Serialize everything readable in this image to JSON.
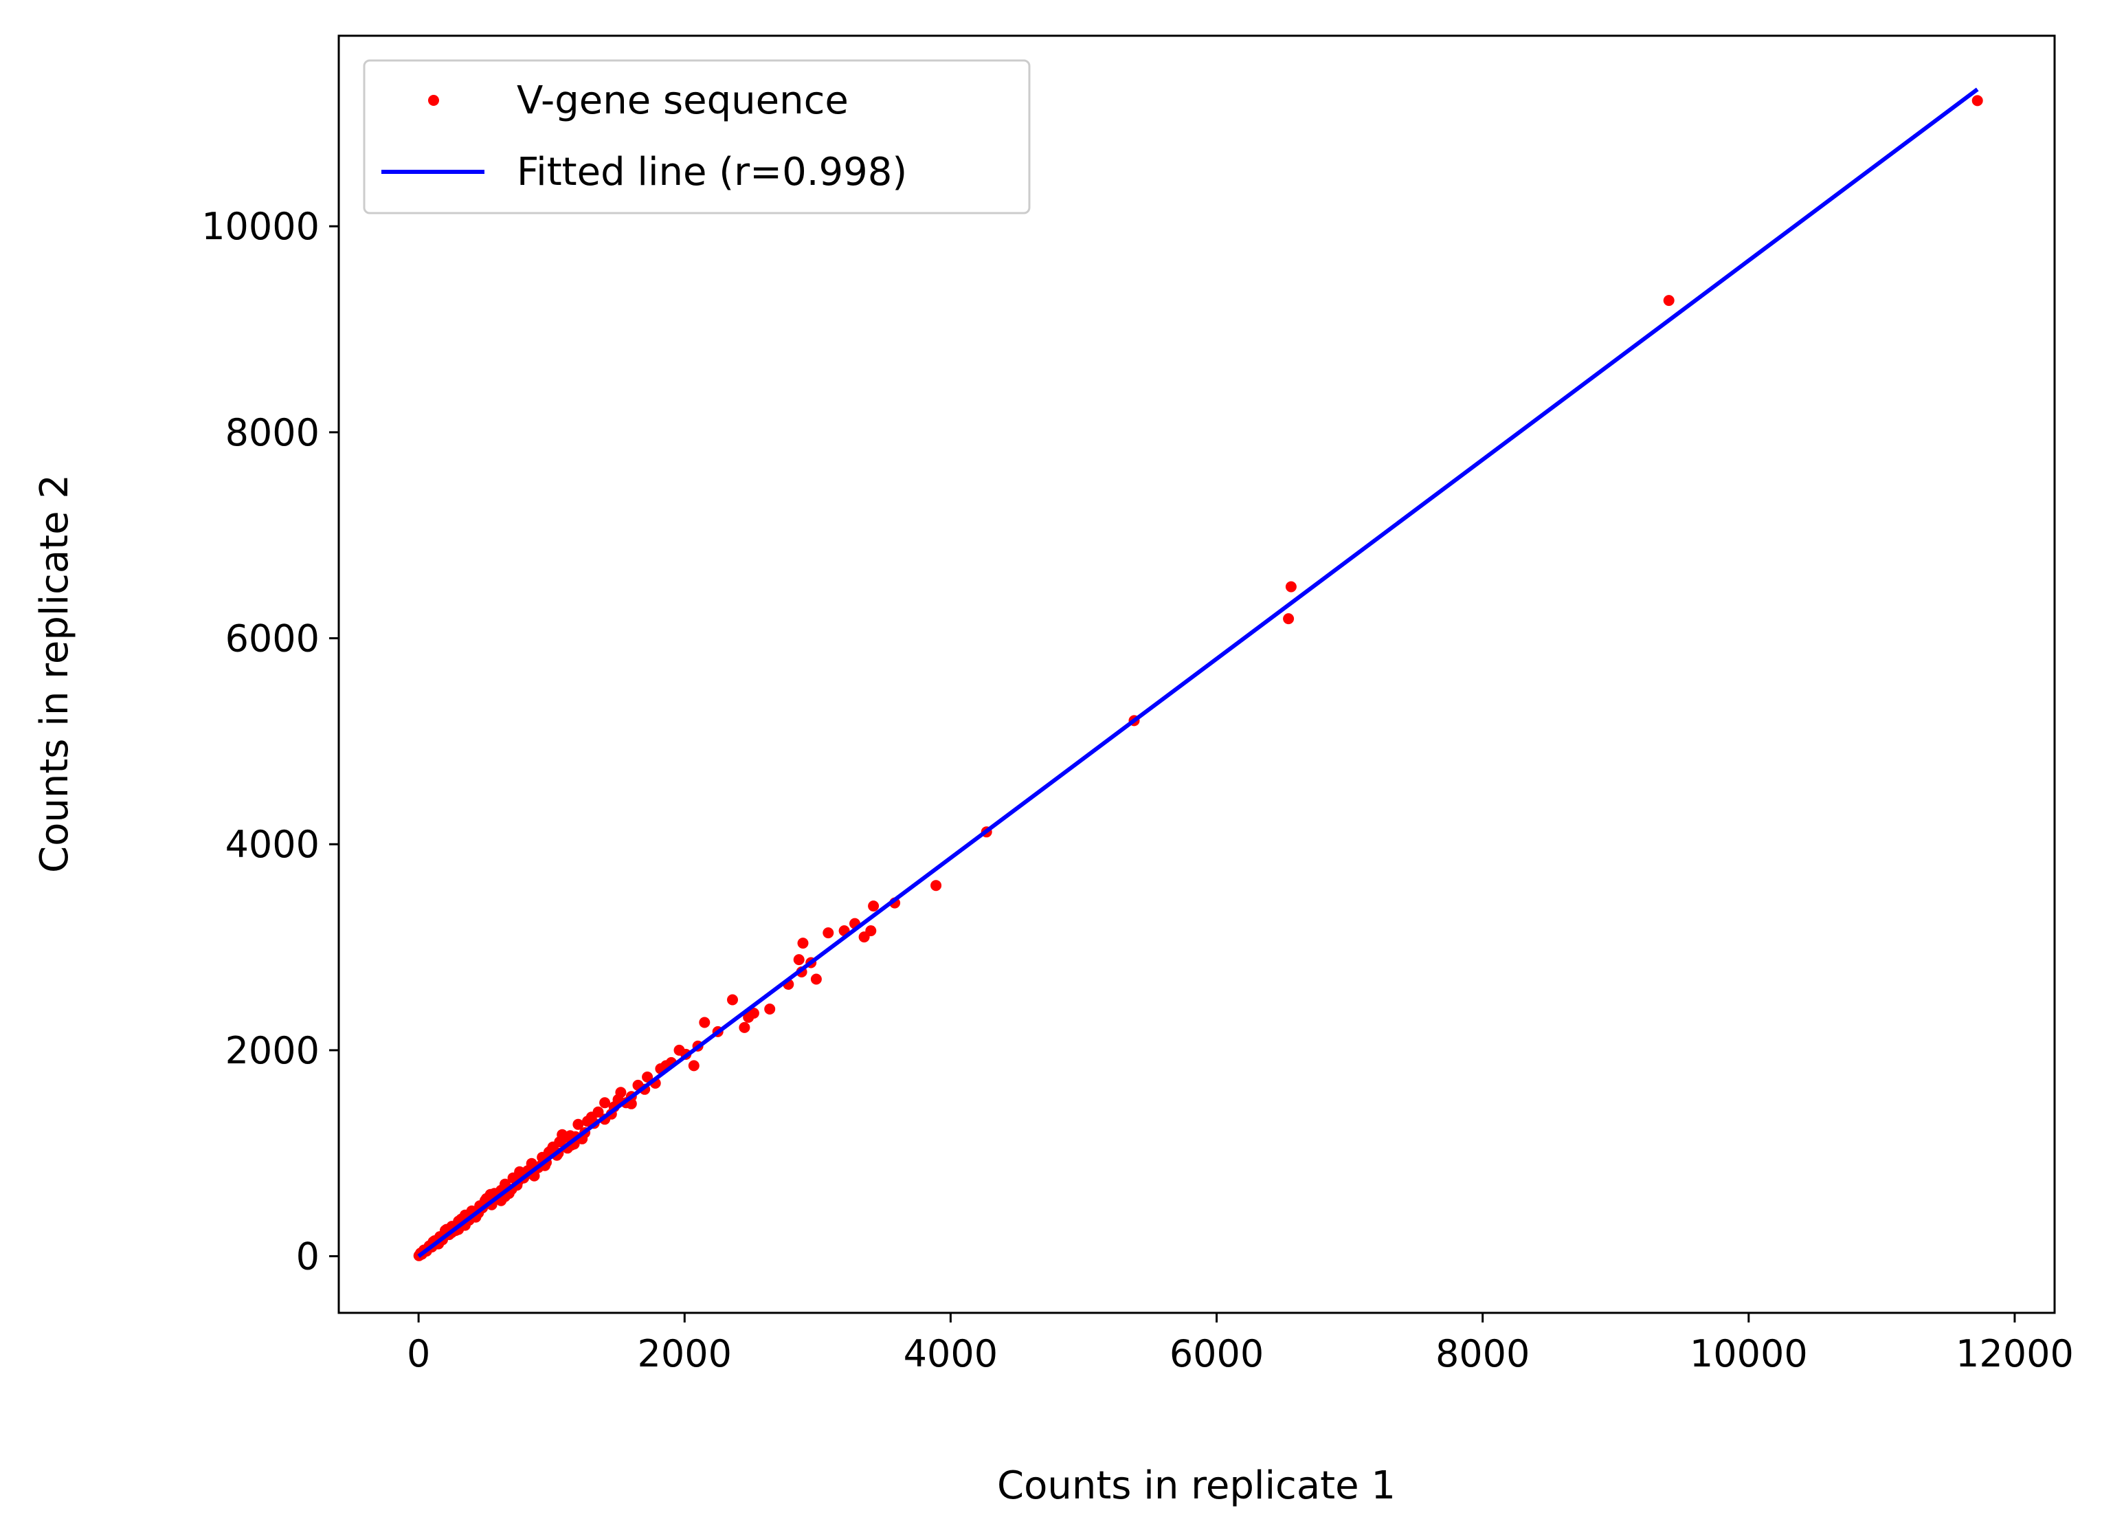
{
  "chart_data": {
    "type": "scatter",
    "title": "",
    "xlabel": "Counts in replicate 1",
    "ylabel": "Counts in replicate 2",
    "xlim": [
      -600,
      12300
    ],
    "ylim": [
      -550,
      11850
    ],
    "xticks": [
      0,
      2000,
      4000,
      6000,
      8000,
      10000,
      12000
    ],
    "yticks": [
      0,
      2000,
      4000,
      6000,
      8000,
      10000
    ],
    "xtick_labels": [
      "0",
      "2000",
      "4000",
      "6000",
      "8000",
      "10000",
      "12000"
    ],
    "ytick_labels": [
      "0",
      "2000",
      "4000",
      "6000",
      "8000",
      "10000"
    ],
    "grid": false,
    "legend_position": "upper-left",
    "colors": {
      "points": "#ff0000",
      "fit": "#0000ff",
      "axes": "#000000"
    },
    "series": [
      {
        "name": "V-gene sequence",
        "kind": "points",
        "x": [
          11720,
          9400,
          6560,
          6540,
          5380,
          4270,
          3890,
          3580,
          3420,
          3400,
          3350,
          3280,
          3200,
          3080,
          2990,
          2950,
          2890,
          2880,
          2860,
          2780,
          2640,
          2520,
          2480,
          2450,
          2360,
          2250,
          2150,
          2100,
          2070,
          2010,
          1960,
          1900,
          1860,
          1820,
          1780,
          1720,
          1700,
          1650,
          1600,
          1560,
          1520,
          1500,
          1470,
          1450,
          1400,
          1350,
          1320,
          1300,
          1270,
          1230,
          1200,
          1170,
          1140,
          1120,
          1090,
          1060,
          1040,
          1010,
          990,
          960,
          930,
          900,
          870,
          850,
          820,
          790,
          760,
          740,
          710,
          680,
          650,
          620,
          600,
          570,
          540,
          510,
          480,
          460,
          430,
          400,
          380,
          350,
          330,
          300,
          280,
          250,
          230,
          200,
          180,
          160,
          140,
          120,
          100,
          80,
          60,
          40,
          25,
          15,
          8,
          3,
          1080,
          980,
          870,
          760,
          650,
          540,
          430,
          320,
          210,
          110,
          1250,
          1150,
          1050,
          950,
          850,
          750,
          650,
          550,
          450,
          350,
          250,
          150,
          700,
          500,
          300,
          1600,
          1400,
          1180,
          920,
          620
        ],
        "y": [
          11220,
          9280,
          6500,
          6190,
          5200,
          4120,
          3600,
          3430,
          3400,
          3160,
          3100,
          3230,
          3160,
          3140,
          2690,
          2850,
          3040,
          2760,
          2880,
          2640,
          2400,
          2360,
          2320,
          2220,
          2490,
          2180,
          2270,
          2040,
          1850,
          1960,
          2000,
          1880,
          1850,
          1820,
          1680,
          1740,
          1620,
          1660,
          1550,
          1490,
          1590,
          1520,
          1450,
          1380,
          1490,
          1400,
          1290,
          1350,
          1310,
          1140,
          1280,
          1090,
          1170,
          1050,
          1150,
          1110,
          980,
          1060,
          1020,
          910,
          960,
          860,
          870,
          900,
          830,
          760,
          810,
          690,
          760,
          610,
          690,
          640,
          570,
          610,
          510,
          560,
          470,
          490,
          420,
          440,
          350,
          400,
          320,
          340,
          250,
          290,
          210,
          250,
          160,
          190,
          120,
          150,
          90,
          100,
          50,
          60,
          20,
          30,
          10,
          5,
          1180,
          1010,
          780,
          820,
          700,
          600,
          380,
          360,
          260,
          140,
          1200,
          1080,
          1000,
          880,
          800,
          730,
          580,
          500,
          420,
          300,
          230,
          120,
          650,
          540,
          260,
          1480,
          1330,
          1160,
          880,
          540
        ]
      },
      {
        "name": "Fitted line (r=0.998)",
        "kind": "line",
        "x": [
          0,
          11720
        ],
        "y": [
          0,
          11330
        ]
      }
    ]
  }
}
